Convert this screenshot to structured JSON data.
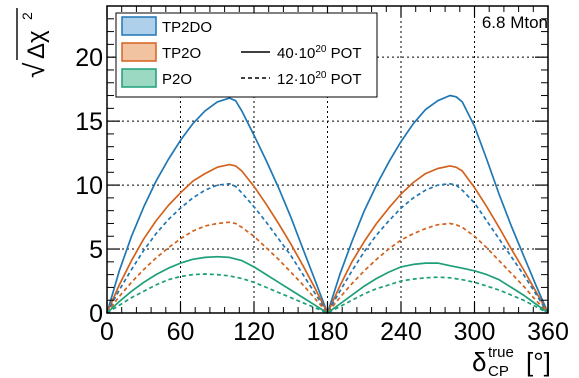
{
  "chart_data": {
    "type": "line",
    "title": "",
    "annotation": "6.8 Mton",
    "xlabel": {
      "base": "δ",
      "sup": "true",
      "sub": "CP",
      "unit": "[°]"
    },
    "ylabel": {
      "sqrt": "√",
      "base": "Δχ",
      "sup": "2"
    },
    "xlim": [
      0,
      360
    ],
    "ylim": [
      0,
      24
    ],
    "x_ticks": [
      "0",
      "60",
      "120",
      "180",
      "240",
      "300",
      "360"
    ],
    "y_ticks": [
      "0",
      "5",
      "10",
      "15",
      "20"
    ],
    "grid": true,
    "legend_position": "top-left",
    "legend_samples": [
      {
        "label": "TP2DO",
        "color": "#1f77b4",
        "fill": "#aed0ea"
      },
      {
        "label": "TP2O",
        "color": "#d3621e",
        "fill": "#f2c3a0"
      },
      {
        "label": "P2O",
        "color": "#1d9f79",
        "fill": "#9bd9c3"
      }
    ],
    "legend_exposures": [
      {
        "prefix": "40·10",
        "sup": "20",
        "suffix": " POT",
        "line_style": "solid"
      },
      {
        "prefix": "12·10",
        "sup": "20",
        "suffix": " POT",
        "line_style": "dashed"
      }
    ],
    "series": [
      {
        "sample": "TP2DO",
        "exposure": "40·10^20 POT",
        "color": "#1f77b4",
        "dashed": false,
        "x": [
          0,
          10,
          20,
          30,
          40,
          50,
          60,
          70,
          80,
          90,
          100,
          105,
          110,
          120,
          130,
          140,
          150,
          160,
          170,
          180,
          190,
          200,
          210,
          220,
          230,
          240,
          250,
          260,
          270,
          280,
          285,
          290,
          300,
          310,
          320,
          330,
          340,
          350,
          360
        ],
        "y": [
          0,
          3.3,
          6.0,
          8.3,
          10.3,
          12.0,
          13.5,
          14.8,
          15.8,
          16.5,
          16.8,
          16.6,
          15.8,
          13.9,
          11.9,
          9.8,
          7.5,
          5.0,
          2.5,
          0,
          3.0,
          5.6,
          8.0,
          10.0,
          11.8,
          13.4,
          14.8,
          15.9,
          16.6,
          17.0,
          16.9,
          16.5,
          14.6,
          12.0,
          9.3,
          6.8,
          4.5,
          2.2,
          0
        ]
      },
      {
        "sample": "TP2O",
        "exposure": "40·10^20 POT",
        "color": "#d3621e",
        "dashed": false,
        "x": [
          0,
          10,
          20,
          30,
          40,
          50,
          60,
          70,
          80,
          90,
          100,
          105,
          110,
          120,
          130,
          140,
          150,
          160,
          170,
          180,
          190,
          200,
          210,
          220,
          230,
          240,
          250,
          260,
          270,
          280,
          285,
          290,
          300,
          310,
          320,
          330,
          340,
          350,
          360
        ],
        "y": [
          0,
          2.2,
          4.1,
          5.8,
          7.2,
          8.4,
          9.4,
          10.3,
          10.9,
          11.4,
          11.6,
          11.5,
          11.1,
          9.9,
          8.5,
          7.0,
          5.4,
          3.7,
          1.9,
          0,
          2.1,
          4.0,
          5.6,
          7.0,
          8.2,
          9.3,
          10.2,
          10.9,
          11.3,
          11.5,
          11.4,
          11.1,
          9.8,
          8.3,
          6.7,
          5.0,
          3.4,
          1.7,
          0
        ]
      },
      {
        "sample": "TP2DO",
        "exposure": "12·10^20 POT",
        "color": "#1f77b4",
        "dashed": true,
        "x": [
          0,
          10,
          20,
          30,
          40,
          50,
          60,
          70,
          80,
          90,
          100,
          105,
          110,
          120,
          130,
          140,
          150,
          160,
          170,
          180,
          190,
          200,
          210,
          220,
          230,
          240,
          250,
          260,
          270,
          280,
          285,
          290,
          300,
          310,
          320,
          330,
          340,
          350,
          360
        ],
        "y": [
          0,
          1.8,
          3.4,
          4.9,
          6.2,
          7.3,
          8.2,
          9.0,
          9.6,
          10.0,
          10.1,
          9.9,
          9.4,
          8.3,
          7.1,
          5.8,
          4.5,
          3.0,
          1.5,
          0,
          1.7,
          3.3,
          4.8,
          6.1,
          7.2,
          8.2,
          9.0,
          9.6,
          10.0,
          10.1,
          10.0,
          9.6,
          8.6,
          7.2,
          5.8,
          4.4,
          3.0,
          1.5,
          0
        ]
      },
      {
        "sample": "TP2O",
        "exposure": "12·10^20 POT",
        "color": "#d3621e",
        "dashed": true,
        "x": [
          0,
          10,
          20,
          30,
          40,
          50,
          60,
          70,
          80,
          90,
          100,
          105,
          110,
          120,
          130,
          140,
          150,
          160,
          170,
          180,
          190,
          200,
          210,
          220,
          230,
          240,
          250,
          260,
          270,
          280,
          285,
          290,
          300,
          310,
          320,
          330,
          340,
          350,
          360
        ],
        "y": [
          0,
          1.3,
          2.4,
          3.4,
          4.3,
          5.1,
          5.8,
          6.4,
          6.8,
          7.0,
          7.1,
          7.0,
          6.7,
          6.0,
          5.1,
          4.2,
          3.2,
          2.2,
          1.1,
          0,
          1.2,
          2.3,
          3.3,
          4.2,
          5.0,
          5.7,
          6.2,
          6.6,
          6.9,
          7.0,
          6.9,
          6.7,
          6.0,
          5.1,
          4.1,
          3.1,
          2.1,
          1.0,
          0
        ]
      },
      {
        "sample": "P2O",
        "exposure": "40·10^20 POT",
        "color": "#1d9f79",
        "dashed": false,
        "x": [
          0,
          10,
          20,
          30,
          40,
          50,
          60,
          70,
          80,
          90,
          100,
          110,
          120,
          130,
          140,
          150,
          160,
          170,
          180,
          190,
          200,
          210,
          220,
          230,
          240,
          250,
          260,
          270,
          280,
          290,
          300,
          310,
          320,
          330,
          340,
          350,
          360
        ],
        "y": [
          0,
          0.9,
          1.7,
          2.4,
          3.0,
          3.5,
          3.9,
          4.2,
          4.35,
          4.4,
          4.35,
          4.1,
          3.6,
          3.0,
          2.4,
          1.8,
          1.2,
          0.6,
          0,
          0.7,
          1.4,
          2.1,
          2.7,
          3.2,
          3.6,
          3.8,
          3.9,
          3.9,
          3.7,
          3.5,
          3.3,
          3.0,
          2.6,
          2.0,
          1.4,
          0.7,
          0
        ]
      },
      {
        "sample": "P2O",
        "exposure": "12·10^20 POT",
        "color": "#1d9f79",
        "dashed": true,
        "x": [
          0,
          10,
          20,
          30,
          40,
          50,
          60,
          70,
          80,
          90,
          100,
          110,
          120,
          130,
          140,
          150,
          160,
          170,
          180,
          190,
          200,
          210,
          220,
          230,
          240,
          250,
          260,
          270,
          280,
          290,
          300,
          310,
          320,
          330,
          340,
          350,
          360
        ],
        "y": [
          0,
          0.6,
          1.2,
          1.7,
          2.2,
          2.6,
          2.85,
          3.0,
          3.05,
          3.0,
          2.9,
          2.7,
          2.4,
          2.0,
          1.6,
          1.2,
          0.8,
          0.4,
          0,
          0.5,
          1.0,
          1.5,
          1.9,
          2.2,
          2.5,
          2.65,
          2.75,
          2.8,
          2.75,
          2.6,
          2.4,
          2.1,
          1.8,
          1.4,
          1.0,
          0.5,
          0
        ]
      }
    ]
  }
}
